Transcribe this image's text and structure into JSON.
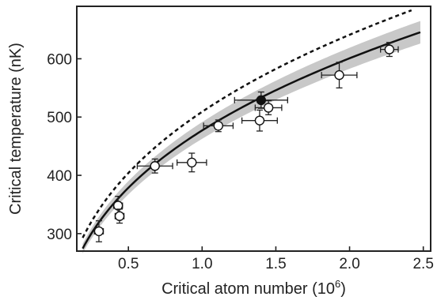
{
  "chart_data": {
    "type": "scatter",
    "title": "",
    "xlabel": "Critical atom number (10",
    "xlabel_exponent": "6",
    "xlabel_suffix": ")",
    "ylabel": "Critical temperature (nK)",
    "xlim": [
      0.15,
      2.55
    ],
    "ylim": [
      270,
      690
    ],
    "x_ticks": [
      0.5,
      1.0,
      1.5,
      2.0,
      2.5
    ],
    "x_tick_labels": [
      "0.5",
      "1.0",
      "1.5",
      "2.0",
      "2.5"
    ],
    "y_ticks": [
      300,
      400,
      500,
      600
    ],
    "y_tick_labels": [
      "300",
      "400",
      "500",
      "600"
    ],
    "grid": false,
    "series": [
      {
        "marker": "open-circle",
        "points": [
          {
            "x": 0.3,
            "y": 304,
            "xerr": 0.03,
            "yerr": 18
          },
          {
            "x": 0.43,
            "y": 348,
            "xerr": 0.03,
            "yerr": 16
          },
          {
            "x": 0.44,
            "y": 330,
            "xerr": 0.03,
            "yerr": 12
          },
          {
            "x": 0.68,
            "y": 416,
            "xerr": 0.12,
            "yerr": 12
          },
          {
            "x": 0.93,
            "y": 422,
            "xerr": 0.1,
            "yerr": 16
          },
          {
            "x": 1.11,
            "y": 485,
            "xerr": 0.1,
            "yerr": 10
          },
          {
            "x": 1.39,
            "y": 494,
            "xerr": 0.12,
            "yerr": 18
          },
          {
            "x": 1.45,
            "y": 516,
            "xerr": 0.09,
            "yerr": 12
          },
          {
            "x": 1.93,
            "y": 572,
            "xerr": 0.12,
            "yerr": 22
          },
          {
            "x": 2.27,
            "y": 616,
            "xerr": 0.06,
            "yerr": 12
          }
        ]
      },
      {
        "marker": "filled-circle",
        "points": [
          {
            "x": 1.4,
            "y": 529,
            "xerr": 0.18,
            "yerr": 14
          }
        ]
      }
    ],
    "fit_curve": {
      "style": "solid",
      "coefficient": 477,
      "exponent": 0.333,
      "band": 0.03,
      "band_color": "#c8c8c8",
      "x_range": [
        0.19,
        2.48
      ]
    },
    "theory_curve": {
      "style": "dashed",
      "coefficient": 509,
      "exponent": 0.333,
      "x_range": [
        0.19,
        2.42
      ]
    },
    "colors": {
      "axis": "#222222",
      "line": "#111111",
      "band": "#c8c8c8",
      "marker_fill_open": "#ffffff",
      "marker_fill_filled": "#111111"
    }
  }
}
